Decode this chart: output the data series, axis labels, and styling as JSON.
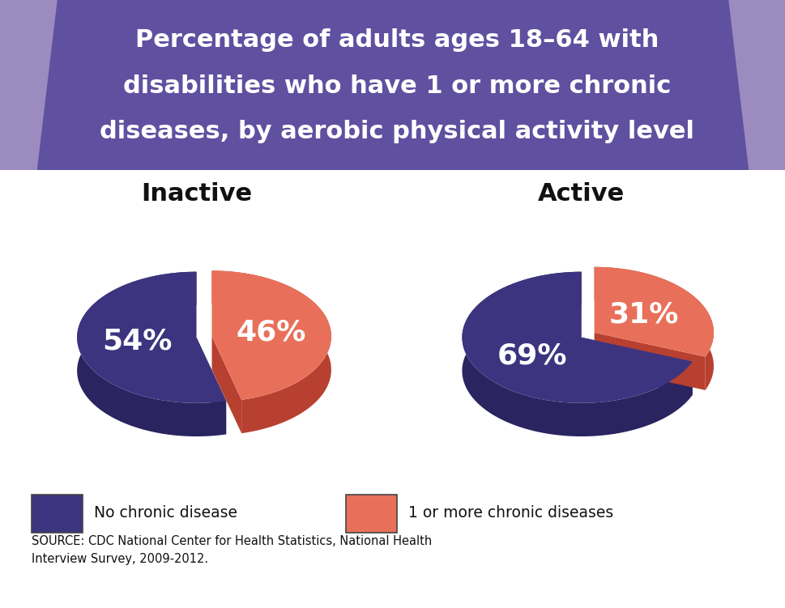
{
  "title_line1": "Percentage of adults ages 18–64 with",
  "title_line2": "disabilities who have 1 or more chronic",
  "title_line3": "diseases, by aerobic physical activity level",
  "background_color": "#ffffff",
  "header_color": "#6050a0",
  "header_corner_color": "#9b8bbf",
  "left_chart_title": "Inactive",
  "right_chart_title": "Active",
  "inactive_values": [
    54,
    46
  ],
  "active_values": [
    69,
    31
  ],
  "colors": [
    "#3d3480",
    "#e8705a"
  ],
  "shadow_colors": [
    "#2a2460",
    "#b84030"
  ],
  "labels_inactive": [
    "54%",
    "46%"
  ],
  "labels_active": [
    "69%",
    "31%"
  ],
  "legend_labels": [
    "No chronic disease",
    "1 or more chronic diseases"
  ],
  "source_text": "SOURCE: CDC National Center for Health Statistics, National Health\nInterview Survey, 2009-2012.",
  "title_fontsize": 22,
  "label_fontsize": 26,
  "chart_title_fontsize": 22
}
